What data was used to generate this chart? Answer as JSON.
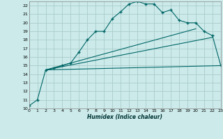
{
  "xlabel": "Humidex (Indice chaleur)",
  "bg_color": "#cceaea",
  "grid_color": "#aacccc",
  "line_color": "#006666",
  "xlim": [
    0,
    23
  ],
  "ylim": [
    10,
    22.5
  ],
  "xticks": [
    0,
    1,
    2,
    3,
    4,
    5,
    6,
    7,
    8,
    9,
    10,
    11,
    12,
    13,
    14,
    15,
    16,
    17,
    18,
    19,
    20,
    21,
    22,
    23
  ],
  "yticks": [
    10,
    11,
    12,
    13,
    14,
    15,
    16,
    17,
    18,
    19,
    20,
    21,
    22
  ],
  "series1_x": [
    0,
    1,
    2,
    3,
    4,
    5,
    6,
    7,
    8,
    9,
    10,
    11,
    12,
    13,
    14,
    15,
    16,
    17,
    18,
    19,
    20,
    21,
    22,
    23
  ],
  "series1_y": [
    10.3,
    11.0,
    14.5,
    14.7,
    15.0,
    15.3,
    16.6,
    18.0,
    19.0,
    19.0,
    20.5,
    21.3,
    22.2,
    22.5,
    22.2,
    22.2,
    21.2,
    21.5,
    20.3,
    20.0,
    20.0,
    19.0,
    18.5,
    15.0
  ],
  "series2_x": [
    2,
    20
  ],
  "series2_y": [
    14.5,
    19.3
  ],
  "series3_x": [
    2,
    22
  ],
  "series3_y": [
    14.5,
    18.3
  ],
  "series4_x": [
    2,
    23
  ],
  "series4_y": [
    14.5,
    15.0
  ]
}
